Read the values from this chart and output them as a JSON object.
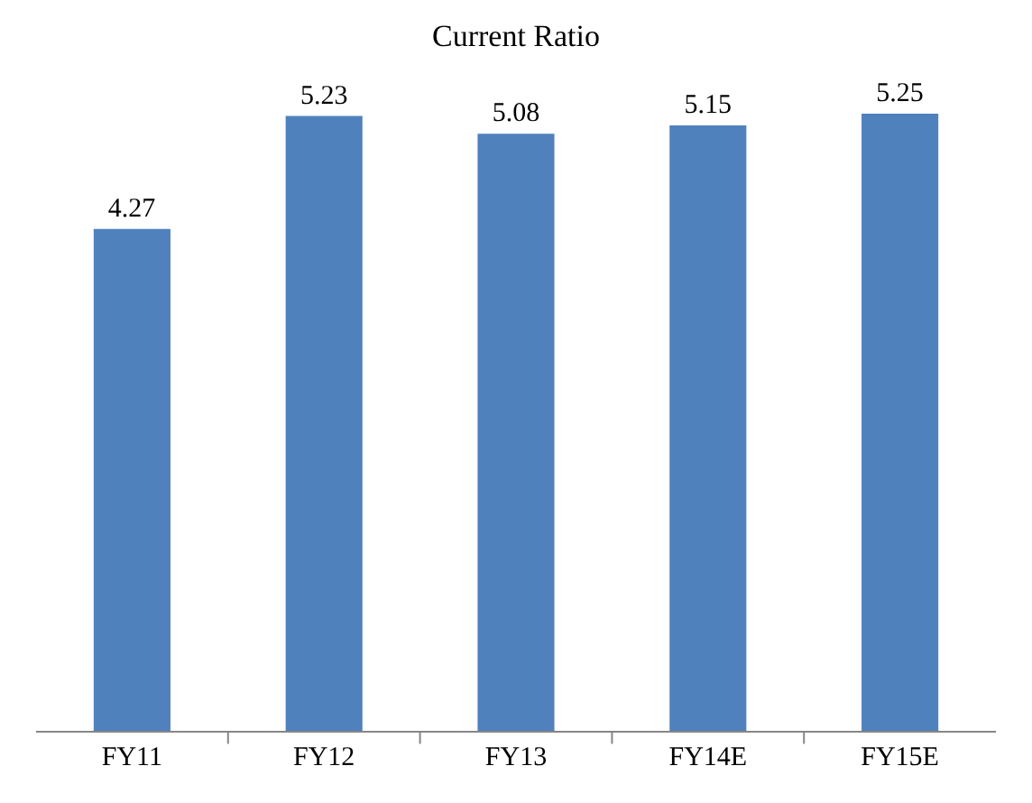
{
  "chart_data": {
    "type": "bar",
    "title": "Current Ratio",
    "categories": [
      "FY11",
      "FY12",
      "FY13",
      "FY14E",
      "FY15E"
    ],
    "values": [
      4.27,
      5.23,
      5.08,
      5.15,
      5.25
    ],
    "color": "#4f81bd",
    "tick_labels": "x",
    "data_labels": true,
    "legend": false
  }
}
